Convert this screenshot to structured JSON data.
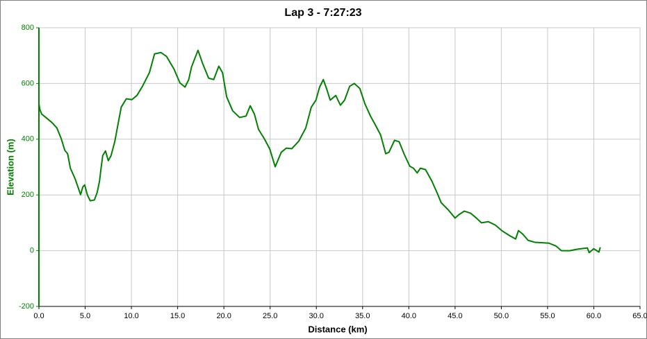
{
  "chart_data": {
    "type": "line",
    "title": "Lap 3 - 7:27:23",
    "x_label": "Distance (km)",
    "y_label": "Elevation (m)",
    "xlim": [
      0,
      65
    ],
    "ylim": [
      -200,
      800
    ],
    "xticks": [
      {
        "value": 0,
        "label": "0.0"
      },
      {
        "value": 5,
        "label": "5.0"
      },
      {
        "value": 10,
        "label": "10.0"
      },
      {
        "value": 15,
        "label": "15.0"
      },
      {
        "value": 20,
        "label": "20.0"
      },
      {
        "value": 25,
        "label": "25.0"
      },
      {
        "value": 30,
        "label": "30.0"
      },
      {
        "value": 35,
        "label": "35.0"
      },
      {
        "value": 40,
        "label": "40.0"
      },
      {
        "value": 45,
        "label": "45.0"
      },
      {
        "value": 50,
        "label": "50.0"
      },
      {
        "value": 55,
        "label": "55.0"
      },
      {
        "value": 60,
        "label": "60.0"
      },
      {
        "value": 65,
        "label": "65.0"
      }
    ],
    "yticks": [
      800,
      600,
      400,
      200,
      0,
      -200
    ],
    "grid": true,
    "series": [
      {
        "name": "Elevation",
        "color": "#008000",
        "x": [
          0,
          0.1,
          0.3,
          0.75,
          1.4,
          1.95,
          2.4,
          2.8,
          3.1,
          3.4,
          3.9,
          4.3,
          4.5,
          4.75,
          4.95,
          5.25,
          5.55,
          6.0,
          6.3,
          6.55,
          6.7,
          6.9,
          7.2,
          7.5,
          7.8,
          8.2,
          8.55,
          8.9,
          9.45,
          10.05,
          10.6,
          11.2,
          11.95,
          12.5,
          13.2,
          13.8,
          14.6,
          15.25,
          15.8,
          16.2,
          16.5,
          17.2,
          17.7,
          18.35,
          18.9,
          19.45,
          19.85,
          20.3,
          20.95,
          21.7,
          22.4,
          22.85,
          23.3,
          23.75,
          24.35,
          24.95,
          25.55,
          26.2,
          26.75,
          27.35,
          28.1,
          28.85,
          29.45,
          29.95,
          30.35,
          30.75,
          31.1,
          31.5,
          32.1,
          32.6,
          33.05,
          33.6,
          34.1,
          34.7,
          35.25,
          35.85,
          36.35,
          36.95,
          37.5,
          37.85,
          38.45,
          38.95,
          39.5,
          40.1,
          40.5,
          40.9,
          41.25,
          41.8,
          42.5,
          43.1,
          43.5,
          44.25,
          45.0,
          45.4,
          46.0,
          46.7,
          47.3,
          47.85,
          48.6,
          49.35,
          50.05,
          50.85,
          51.55,
          51.85,
          52.3,
          52.9,
          53.65,
          55.15,
          55.9,
          56.5,
          57.4,
          58.15,
          59.3,
          59.5,
          60.0,
          60.55,
          60.7
        ],
        "values": [
          527,
          507,
          490,
          478,
          460,
          440,
          403,
          360,
          348,
          296,
          259,
          221,
          201,
          229,
          236,
          199,
          179,
          182,
          209,
          249,
          291,
          341,
          358,
          323,
          341,
          391,
          453,
          515,
          545,
          542,
          557,
          590,
          639,
          706,
          711,
          697,
          652,
          602,
          587,
          614,
          659,
          719,
          672,
          619,
          614,
          662,
          639,
          552,
          502,
          478,
          483,
          520,
          490,
          435,
          403,
          366,
          301,
          353,
          368,
          366,
          393,
          440,
          515,
          540,
          587,
          614,
          582,
          540,
          557,
          522,
          540,
          590,
          600,
          582,
          527,
          483,
          453,
          415,
          348,
          353,
          396,
          391,
          346,
          303,
          296,
          279,
          296,
          291,
          249,
          204,
          172,
          147,
          117,
          129,
          142,
          134,
          117,
          100,
          104,
          92,
          72,
          55,
          42,
          72,
          60,
          37,
          30,
          27,
          17,
          0,
          0,
          5,
          10,
          -7,
          7,
          -5,
          12
        ]
      }
    ]
  }
}
